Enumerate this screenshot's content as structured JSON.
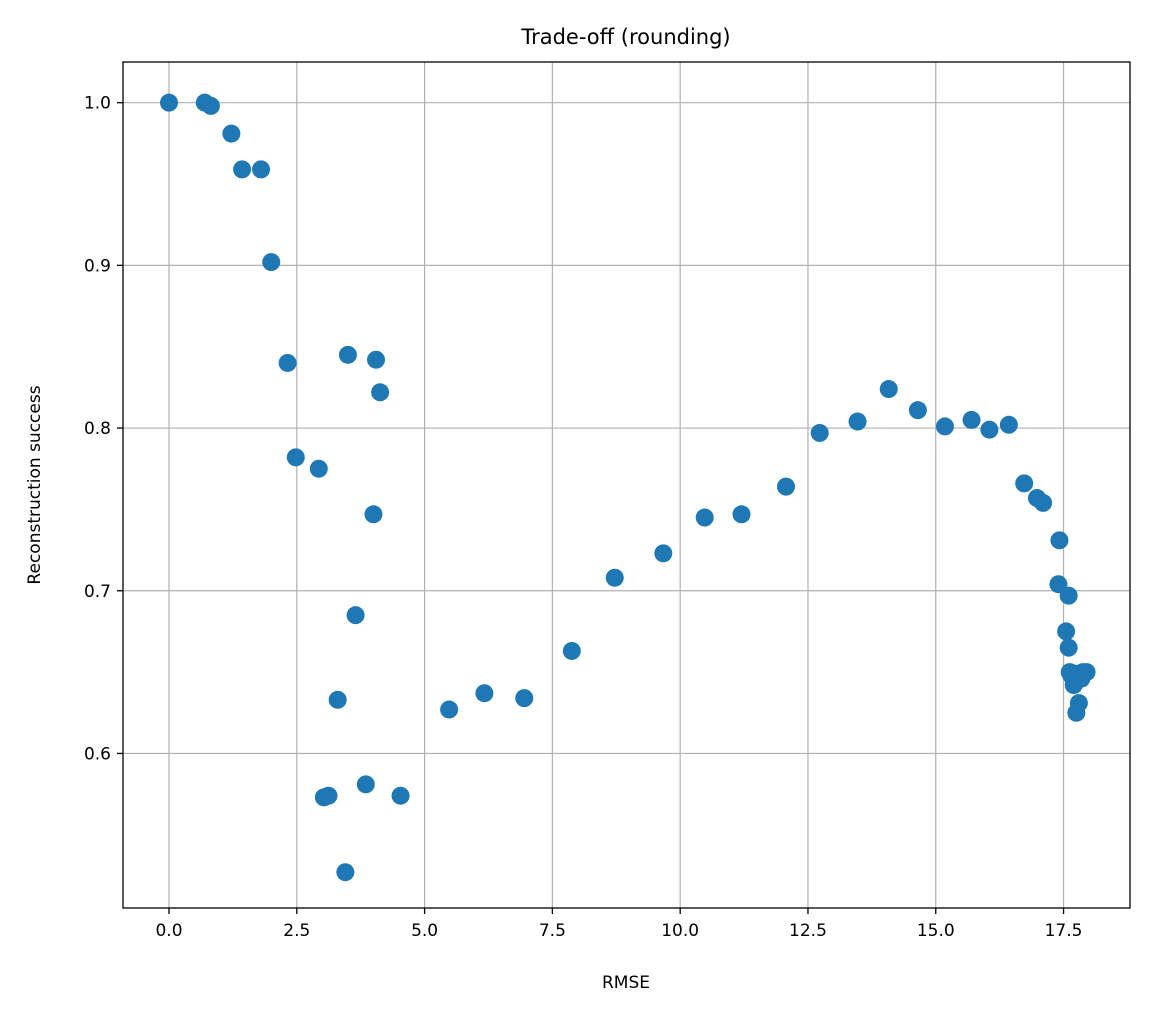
{
  "chart_data": {
    "type": "scatter",
    "title": "Trade-off (rounding)",
    "xlabel": "RMSE",
    "ylabel": "Reconstruction success",
    "xlim": [
      -0.9,
      18.8
    ],
    "ylim": [
      0.505,
      1.025
    ],
    "xticks": [
      0.0,
      2.5,
      5.0,
      7.5,
      10.0,
      12.5,
      15.0,
      17.5
    ],
    "xtick_labels": [
      "0.0",
      "2.5",
      "5.0",
      "7.5",
      "10.0",
      "12.5",
      "15.0",
      "17.5"
    ],
    "yticks": [
      0.6,
      0.7,
      0.8,
      0.9,
      1.0
    ],
    "ytick_labels": [
      "0.6",
      "0.7",
      "0.8",
      "0.9",
      "1.0"
    ],
    "grid": true,
    "marker_color": "#1f77b4",
    "points": [
      [
        0.0,
        1.0
      ],
      [
        0.7,
        1.0
      ],
      [
        0.82,
        0.998
      ],
      [
        1.22,
        0.981
      ],
      [
        1.43,
        0.959
      ],
      [
        1.8,
        0.959
      ],
      [
        2.0,
        0.902
      ],
      [
        2.32,
        0.84
      ],
      [
        2.48,
        0.782
      ],
      [
        2.93,
        0.775
      ],
      [
        3.03,
        0.573
      ],
      [
        3.12,
        0.574
      ],
      [
        3.3,
        0.633
      ],
      [
        3.45,
        0.527
      ],
      [
        3.5,
        0.845
      ],
      [
        3.65,
        0.685
      ],
      [
        3.85,
        0.581
      ],
      [
        4.0,
        0.747
      ],
      [
        4.05,
        0.842
      ],
      [
        4.13,
        0.822
      ],
      [
        4.53,
        0.574
      ],
      [
        5.48,
        0.627
      ],
      [
        6.17,
        0.637
      ],
      [
        6.95,
        0.634
      ],
      [
        7.88,
        0.663
      ],
      [
        8.72,
        0.708
      ],
      [
        9.67,
        0.723
      ],
      [
        10.48,
        0.745
      ],
      [
        11.2,
        0.747
      ],
      [
        12.07,
        0.764
      ],
      [
        12.73,
        0.797
      ],
      [
        13.47,
        0.804
      ],
      [
        14.08,
        0.824
      ],
      [
        14.65,
        0.811
      ],
      [
        15.18,
        0.801
      ],
      [
        15.7,
        0.805
      ],
      [
        16.05,
        0.799
      ],
      [
        16.43,
        0.802
      ],
      [
        16.73,
        0.766
      ],
      [
        16.98,
        0.757
      ],
      [
        17.1,
        0.754
      ],
      [
        17.42,
        0.731
      ],
      [
        17.4,
        0.704
      ],
      [
        17.55,
        0.675
      ],
      [
        17.6,
        0.697
      ],
      [
        17.6,
        0.665
      ],
      [
        17.62,
        0.65
      ],
      [
        17.7,
        0.642
      ],
      [
        17.72,
        0.646
      ],
      [
        17.75,
        0.625
      ],
      [
        17.8,
        0.631
      ],
      [
        17.82,
        0.648
      ],
      [
        17.88,
        0.65
      ],
      [
        17.95,
        0.65
      ],
      [
        17.65,
        0.648
      ],
      [
        17.75,
        0.649
      ],
      [
        17.85,
        0.646
      ]
    ]
  }
}
